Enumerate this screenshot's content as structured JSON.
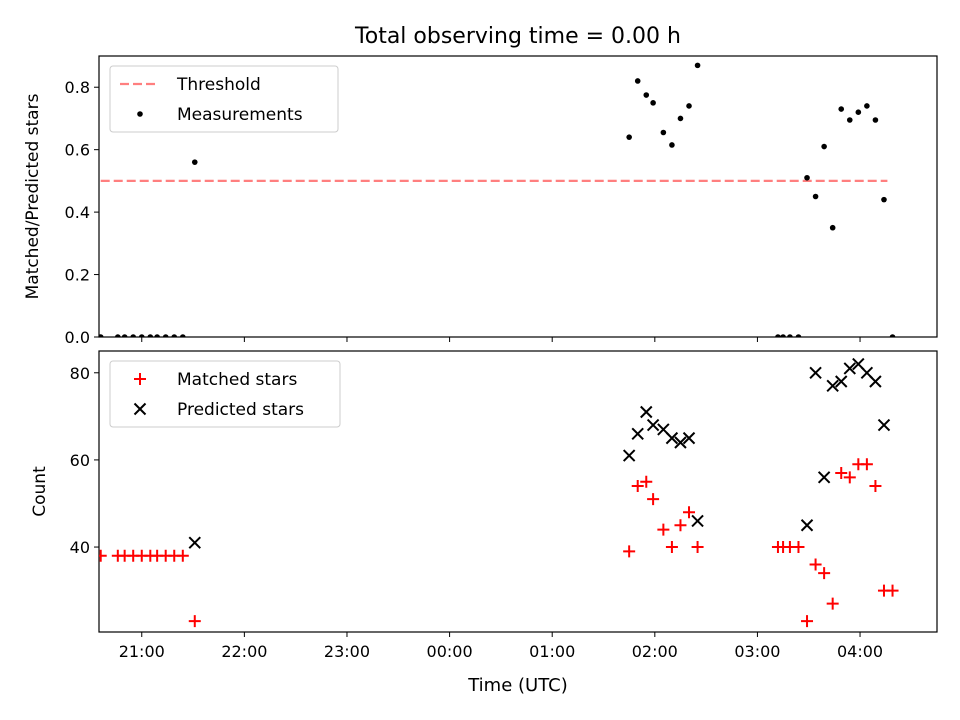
{
  "figure": {
    "title": "Total observing time = 0.00 h",
    "xlabel": "Time (UTC)"
  },
  "colors": {
    "threshold": "#ff7f7f",
    "measurements": "#000000",
    "matched": "#ff0000",
    "predicted": "#000000"
  },
  "chart_data": [
    {
      "type": "scatter",
      "panel": "top",
      "ylabel": "Matched/Predicted stars",
      "xlim": [
        "20:35",
        "04:45"
      ],
      "ylim": [
        0,
        0.9
      ],
      "x_tick_labels": [
        "21:00",
        "22:00",
        "23:00",
        "00:00",
        "01:00",
        "02:00",
        "03:00",
        "04:00"
      ],
      "y_tick_labels": [
        "0.0",
        "0.2",
        "0.4",
        "0.6",
        "0.8"
      ],
      "y_ticks": [
        0,
        0.2,
        0.4,
        0.6,
        0.8
      ],
      "legend": {
        "placement": "top-left"
      },
      "series": [
        {
          "name": "Threshold",
          "kind": "line",
          "style": "dashed",
          "points": [
            [
              "20:36",
              0.5
            ],
            [
              "04:16",
              0.5
            ]
          ]
        },
        {
          "name": "Measurements",
          "kind": "scatter",
          "points": [
            [
              "20:36",
              0.0
            ],
            [
              "20:46",
              0.0
            ],
            [
              "20:50",
              0.0
            ],
            [
              "20:55",
              0.0
            ],
            [
              "21:00",
              0.0
            ],
            [
              "21:05",
              0.0
            ],
            [
              "21:09",
              0.0
            ],
            [
              "21:14",
              0.0
            ],
            [
              "21:19",
              0.0
            ],
            [
              "21:24",
              0.0
            ],
            [
              "21:31",
              0.56
            ],
            [
              "01:45",
              0.64
            ],
            [
              "01:50",
              0.82
            ],
            [
              "01:55",
              0.775
            ],
            [
              "01:59",
              0.75
            ],
            [
              "02:05",
              0.655
            ],
            [
              "02:10",
              0.615
            ],
            [
              "02:15",
              0.7
            ],
            [
              "02:20",
              0.74
            ],
            [
              "02:25",
              0.87
            ],
            [
              "03:12",
              0.0
            ],
            [
              "03:15",
              0.0
            ],
            [
              "03:19",
              0.0
            ],
            [
              "03:24",
              0.0
            ],
            [
              "03:29",
              0.51
            ],
            [
              "03:34",
              0.45
            ],
            [
              "03:39",
              0.61
            ],
            [
              "03:44",
              0.35
            ],
            [
              "03:49",
              0.73
            ],
            [
              "03:54",
              0.695
            ],
            [
              "03:59",
              0.72
            ],
            [
              "04:04",
              0.74
            ],
            [
              "04:09",
              0.695
            ],
            [
              "04:14",
              0.44
            ],
            [
              "04:19",
              0.0
            ]
          ]
        }
      ]
    },
    {
      "type": "scatter",
      "panel": "bottom",
      "ylabel": "Count",
      "xlim": [
        "20:35",
        "04:45"
      ],
      "ylim": [
        20.5,
        85
      ],
      "x_tick_labels": [
        "21:00",
        "22:00",
        "23:00",
        "00:00",
        "01:00",
        "02:00",
        "03:00",
        "04:00"
      ],
      "y_tick_labels": [
        "40",
        "60",
        "80"
      ],
      "y_ticks": [
        40,
        60,
        80
      ],
      "legend": {
        "placement": "top-left"
      },
      "series": [
        {
          "name": "Matched stars",
          "kind": "scatter",
          "marker": "plus",
          "points": [
            [
              "20:36",
              38
            ],
            [
              "20:46",
              38
            ],
            [
              "20:50",
              38
            ],
            [
              "20:55",
              38
            ],
            [
              "21:00",
              38
            ],
            [
              "21:05",
              38
            ],
            [
              "21:09",
              38
            ],
            [
              "21:14",
              38
            ],
            [
              "21:19",
              38
            ],
            [
              "21:24",
              38
            ],
            [
              "21:31",
              23
            ],
            [
              "01:45",
              39
            ],
            [
              "01:50",
              54
            ],
            [
              "01:55",
              55
            ],
            [
              "01:59",
              51
            ],
            [
              "02:05",
              44
            ],
            [
              "02:10",
              40
            ],
            [
              "02:15",
              45
            ],
            [
              "02:20",
              48
            ],
            [
              "02:25",
              40
            ],
            [
              "03:12",
              40
            ],
            [
              "03:15",
              40
            ],
            [
              "03:19",
              40
            ],
            [
              "03:24",
              40
            ],
            [
              "03:29",
              23
            ],
            [
              "03:34",
              36
            ],
            [
              "03:39",
              34
            ],
            [
              "03:44",
              27
            ],
            [
              "03:49",
              57
            ],
            [
              "03:54",
              56
            ],
            [
              "03:59",
              59
            ],
            [
              "04:04",
              59
            ],
            [
              "04:09",
              54
            ],
            [
              "04:14",
              30
            ],
            [
              "04:19",
              30
            ]
          ]
        },
        {
          "name": "Predicted stars",
          "kind": "scatter",
          "marker": "x",
          "points": [
            [
              "21:31",
              41
            ],
            [
              "01:45",
              61
            ],
            [
              "01:50",
              66
            ],
            [
              "01:55",
              71
            ],
            [
              "01:59",
              68
            ],
            [
              "02:05",
              67
            ],
            [
              "02:10",
              65
            ],
            [
              "02:15",
              64
            ],
            [
              "02:20",
              65
            ],
            [
              "02:25",
              46
            ],
            [
              "03:29",
              45
            ],
            [
              "03:34",
              80
            ],
            [
              "03:39",
              56
            ],
            [
              "03:44",
              77
            ],
            [
              "03:49",
              78
            ],
            [
              "03:54",
              81
            ],
            [
              "03:59",
              82
            ],
            [
              "04:04",
              80
            ],
            [
              "04:09",
              78
            ],
            [
              "04:14",
              68
            ]
          ]
        }
      ]
    }
  ]
}
